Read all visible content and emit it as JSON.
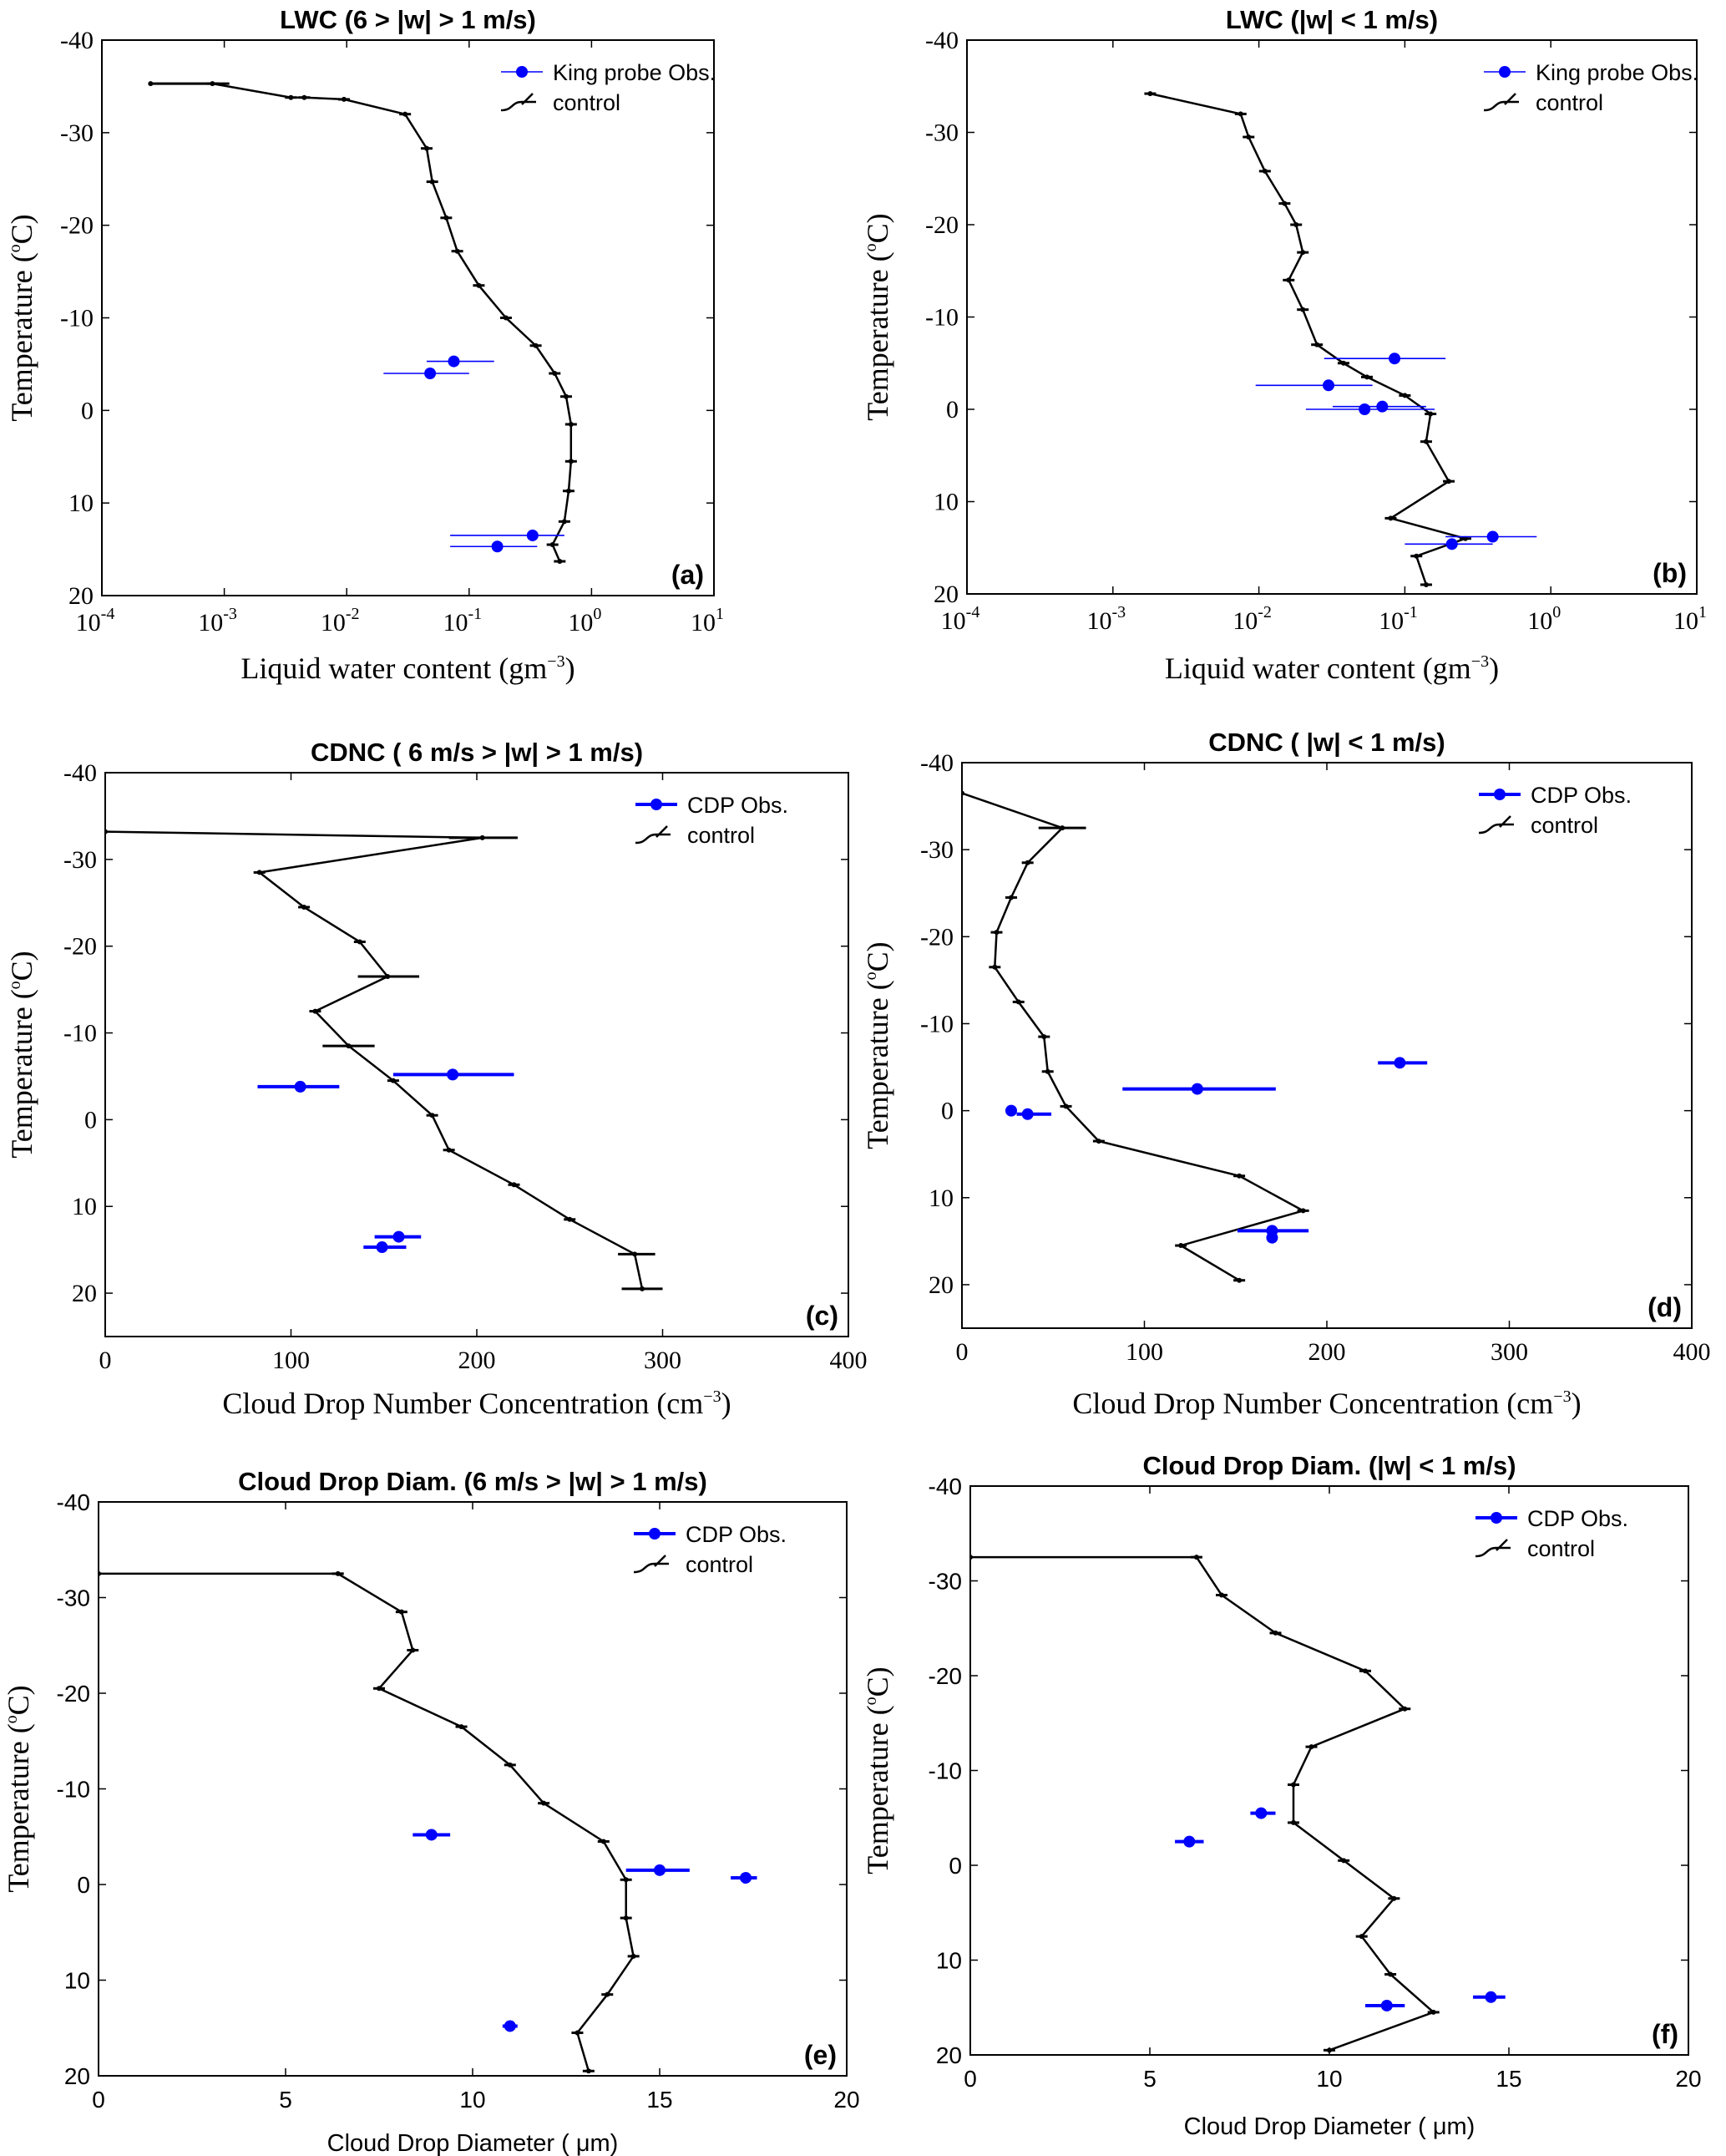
{
  "colors": {
    "obs": "#0000ff",
    "model": "#000000"
  },
  "chart_data": [
    {
      "id": "a",
      "type": "scatter",
      "title": "LWC  (6 > |w|  > 1 m/s)",
      "xlabel": "Liquid water content (gm",
      "xlabel_sup": "−3",
      "xlabel_tail": ")",
      "ylabel": "Temperature (",
      "ylabel_sup": "o",
      "ylabel_tail": "C)",
      "xscale": "log",
      "xlim": [
        0.0001,
        10
      ],
      "ylim": [
        20,
        -40
      ],
      "xticks": [
        {
          "v": 0.0001,
          "base": "10",
          "exp": "-4"
        },
        {
          "v": 0.001,
          "base": "10",
          "exp": "-3"
        },
        {
          "v": 0.01,
          "base": "10",
          "exp": "-2"
        },
        {
          "v": 0.1,
          "base": "10",
          "exp": "-1"
        },
        {
          "v": 1,
          "base": "10",
          "exp": "0"
        },
        {
          "v": 10,
          "base": "10",
          "exp": "1"
        }
      ],
      "yticks": [
        "-40",
        "-30",
        "-20",
        "-10",
        "0",
        "10",
        "20"
      ],
      "grid": false,
      "legend_position": "top-right",
      "panel_label": "(a)",
      "obs_name": "King probe Obs.",
      "model_name": "control",
      "observations": [
        {
          "x": 0.075,
          "y": -5.3,
          "xerr": [
            0.045,
            0.16
          ]
        },
        {
          "x": 0.048,
          "y": -4.0,
          "xerr": [
            0.02,
            0.1
          ]
        },
        {
          "x": 0.33,
          "y": 13.5,
          "xerr": [
            0.07,
            0.6
          ]
        },
        {
          "x": 0.17,
          "y": 14.7,
          "xerr": [
            0.07,
            0.36
          ]
        }
      ],
      "model": [
        {
          "x": 0.00025,
          "y": -35.3,
          "xerr": [
            0.00025,
            0.0011
          ]
        },
        {
          "x": 0.0008,
          "y": -35.3
        },
        {
          "x": 0.0035,
          "y": -33.8
        },
        {
          "x": 0.0045,
          "y": -33.8
        },
        {
          "x": 0.0095,
          "y": -33.6
        },
        {
          "x": 0.03,
          "y": -32.0
        },
        {
          "x": 0.045,
          "y": -28.3
        },
        {
          "x": 0.05,
          "y": -24.7
        },
        {
          "x": 0.065,
          "y": -20.8
        },
        {
          "x": 0.08,
          "y": -17.2
        },
        {
          "x": 0.12,
          "y": -13.5
        },
        {
          "x": 0.2,
          "y": -10.0
        },
        {
          "x": 0.35,
          "y": -7.0
        },
        {
          "x": 0.5,
          "y": -4.0
        },
        {
          "x": 0.62,
          "y": -1.5
        },
        {
          "x": 0.68,
          "y": 1.5
        },
        {
          "x": 0.68,
          "y": 5.5
        },
        {
          "x": 0.65,
          "y": 8.7
        },
        {
          "x": 0.6,
          "y": 12.0
        },
        {
          "x": 0.48,
          "y": 14.5
        },
        {
          "x": 0.55,
          "y": 16.3
        }
      ]
    },
    {
      "id": "b",
      "type": "scatter",
      "title": "LWC (|w|  < 1 m/s)",
      "xlabel": "Liquid water content (gm",
      "xlabel_sup": "−3",
      "xlabel_tail": ")",
      "ylabel": "Temperature (",
      "ylabel_sup": "o",
      "ylabel_tail": "C)",
      "xscale": "log",
      "xlim": [
        0.0001,
        10
      ],
      "ylim": [
        20,
        -40
      ],
      "xticks": [
        {
          "v": 0.0001,
          "base": "10",
          "exp": "-4"
        },
        {
          "v": 0.001,
          "base": "10",
          "exp": "-3"
        },
        {
          "v": 0.01,
          "base": "10",
          "exp": "-2"
        },
        {
          "v": 0.1,
          "base": "10",
          "exp": "-1"
        },
        {
          "v": 1,
          "base": "10",
          "exp": "0"
        },
        {
          "v": 10,
          "base": "10",
          "exp": "1"
        }
      ],
      "yticks": [
        "-40",
        "-30",
        "-20",
        "-10",
        "0",
        "10",
        "20"
      ],
      "grid": false,
      "legend_position": "top-right",
      "panel_label": "(b)",
      "obs_name": "King probe Obs.",
      "model_name": "control",
      "observations": [
        {
          "x": 0.085,
          "y": -5.5,
          "xerr": [
            0.028,
            0.19
          ]
        },
        {
          "x": 0.03,
          "y": -2.6,
          "xerr": [
            0.0095,
            0.06
          ]
        },
        {
          "x": 0.07,
          "y": -0.3,
          "xerr": [
            0.032,
            0.14
          ]
        },
        {
          "x": 0.053,
          "y": 0.0,
          "xerr": [
            0.021,
            0.16
          ]
        },
        {
          "x": 0.4,
          "y": 13.8,
          "xerr": [
            0.19,
            0.8
          ]
        },
        {
          "x": 0.21,
          "y": 14.6,
          "xerr": [
            0.1,
            0.4
          ]
        }
      ],
      "model": [
        {
          "x": 0.0018,
          "y": -34.2
        },
        {
          "x": 0.0075,
          "y": -32.0
        },
        {
          "x": 0.0085,
          "y": -29.5
        },
        {
          "x": 0.011,
          "y": -25.8
        },
        {
          "x": 0.015,
          "y": -22.3
        },
        {
          "x": 0.018,
          "y": -20.0
        },
        {
          "x": 0.02,
          "y": -17.0
        },
        {
          "x": 0.016,
          "y": -14.0
        },
        {
          "x": 0.02,
          "y": -10.8
        },
        {
          "x": 0.025,
          "y": -7.0
        },
        {
          "x": 0.038,
          "y": -5.0
        },
        {
          "x": 0.055,
          "y": -3.5
        },
        {
          "x": 0.1,
          "y": -1.5
        },
        {
          "x": 0.15,
          "y": 0.5
        },
        {
          "x": 0.14,
          "y": 3.5
        },
        {
          "x": 0.2,
          "y": 7.8
        },
        {
          "x": 0.08,
          "y": 11.8
        },
        {
          "x": 0.26,
          "y": 14.0
        },
        {
          "x": 0.12,
          "y": 15.9
        },
        {
          "x": 0.14,
          "y": 19.0
        }
      ]
    },
    {
      "id": "c",
      "type": "scatter",
      "title": "CDNC ( 6 m/s > |w|  > 1 m/s)",
      "xlabel": "Cloud Drop Number Concentration (cm",
      "xlabel_sup": "−3",
      "xlabel_tail": ")",
      "ylabel": "Temperature (",
      "ylabel_sup": "o",
      "ylabel_tail": "C)",
      "xscale": "linear",
      "xlim": [
        0,
        400
      ],
      "ylim": [
        25,
        -40
      ],
      "xticks": [
        "0",
        "100",
        "200",
        "300",
        "400"
      ],
      "yticks": [
        "-40",
        "-30",
        "-20",
        "-10",
        "0",
        "10",
        "20"
      ],
      "grid": false,
      "legend_position": "top-right",
      "panel_label": "(c)",
      "obs_name": "CDP Obs.",
      "model_name": "control",
      "observations": [
        {
          "x": 187,
          "y": -5.2,
          "xerr": [
            155,
            220
          ]
        },
        {
          "x": 105,
          "y": -3.8,
          "xerr": [
            82,
            126
          ]
        },
        {
          "x": 158,
          "y": 13.5,
          "xerr": [
            145,
            170
          ]
        },
        {
          "x": 149,
          "y": 14.7,
          "xerr": [
            139,
            162
          ]
        }
      ],
      "model": [
        {
          "x": 0,
          "y": -33.2
        },
        {
          "x": 203,
          "y": -32.5,
          "xerr": [
            185,
            222
          ]
        },
        {
          "x": 83,
          "y": -28.5
        },
        {
          "x": 107,
          "y": -24.5
        },
        {
          "x": 137,
          "y": -20.5
        },
        {
          "x": 152,
          "y": -16.5,
          "xerr": [
            136,
            169
          ]
        },
        {
          "x": 113,
          "y": -12.5
        },
        {
          "x": 131,
          "y": -8.5,
          "xerr": [
            117,
            145
          ]
        },
        {
          "x": 155,
          "y": -4.5
        },
        {
          "x": 176,
          "y": -0.5
        },
        {
          "x": 185,
          "y": 3.5
        },
        {
          "x": 220,
          "y": 7.5
        },
        {
          "x": 250,
          "y": 11.5
        },
        {
          "x": 285,
          "y": 15.5,
          "xerr": [
            276,
            296
          ]
        },
        {
          "x": 289,
          "y": 19.5,
          "xerr": [
            278,
            300
          ]
        }
      ]
    },
    {
      "id": "d",
      "type": "scatter",
      "title": "CDNC ( |w|  < 1 m/s)",
      "xlabel": "Cloud Drop Number Concentration (cm",
      "xlabel_sup": "−3",
      "xlabel_tail": ")",
      "ylabel": "Temperature (",
      "ylabel_sup": "o",
      "ylabel_tail": "C)",
      "xscale": "linear",
      "xlim": [
        0,
        400
      ],
      "ylim": [
        25,
        -40
      ],
      "xticks": [
        "0",
        "100",
        "200",
        "300",
        "400"
      ],
      "yticks": [
        "-40",
        "-30",
        "-20",
        "-10",
        "0",
        "10",
        "20"
      ],
      "grid": false,
      "legend_position": "top-right",
      "panel_label": "(d)",
      "obs_name": "CDP Obs.",
      "model_name": "control",
      "observations": [
        {
          "x": 240,
          "y": -5.5,
          "xerr": [
            228,
            255
          ]
        },
        {
          "x": 129,
          "y": -2.5,
          "xerr": [
            88,
            172
          ]
        },
        {
          "x": 27,
          "y": 0.0
        },
        {
          "x": 36,
          "y": 0.4,
          "xerr": [
            30,
            49
          ]
        },
        {
          "x": 170,
          "y": 13.8,
          "xerr": [
            151,
            190
          ]
        },
        {
          "x": 170,
          "y": 14.6
        }
      ],
      "model": [
        {
          "x": 0,
          "y": -36.5
        },
        {
          "x": 55,
          "y": -32.5,
          "xerr": [
            42,
            68
          ]
        },
        {
          "x": 36,
          "y": -28.5
        },
        {
          "x": 27,
          "y": -24.5
        },
        {
          "x": 19,
          "y": -20.5
        },
        {
          "x": 18,
          "y": -16.5
        },
        {
          "x": 31,
          "y": -12.5
        },
        {
          "x": 45,
          "y": -8.5
        },
        {
          "x": 47,
          "y": -4.5
        },
        {
          "x": 57,
          "y": -0.5
        },
        {
          "x": 75,
          "y": 3.5
        },
        {
          "x": 152,
          "y": 7.5
        },
        {
          "x": 187,
          "y": 11.5
        },
        {
          "x": 120,
          "y": 15.5
        },
        {
          "x": 152,
          "y": 19.5
        }
      ]
    },
    {
      "id": "e",
      "type": "scatter",
      "title": "Cloud Drop Diam. (6 m/s > |w|  > 1 m/s)",
      "xlabel": "Cloud Drop Diameter ( μm)",
      "ylabel": "Temperature (",
      "ylabel_sup": "o",
      "ylabel_tail": "C)",
      "xscale": "linear",
      "xlim": [
        0,
        20
      ],
      "ylim": [
        20,
        -40
      ],
      "xticks": [
        "0",
        "5",
        "10",
        "15",
        "20"
      ],
      "yticks": [
        "-40",
        "-30",
        "-20",
        "-10",
        "0",
        "10",
        "20"
      ],
      "grid": false,
      "legend_position": "top-right",
      "panel_label": "(e)",
      "obs_name": "CDP Obs.",
      "model_name": "control",
      "observations": [
        {
          "x": 8.9,
          "y": -5.2,
          "xerr": [
            8.4,
            9.4
          ]
        },
        {
          "x": 15.0,
          "y": -1.5,
          "xerr": [
            14.1,
            15.8
          ]
        },
        {
          "x": 17.3,
          "y": -0.7,
          "xerr": [
            16.9,
            17.6
          ]
        },
        {
          "x": 11.0,
          "y": 14.8,
          "xerr": [
            10.8,
            11.2
          ]
        }
      ],
      "model": [
        {
          "x": 0,
          "y": -32.5
        },
        {
          "x": 6.4,
          "y": -32.5
        },
        {
          "x": 8.1,
          "y": -28.5
        },
        {
          "x": 8.4,
          "y": -24.5
        },
        {
          "x": 7.5,
          "y": -20.5
        },
        {
          "x": 9.7,
          "y": -16.5
        },
        {
          "x": 11.0,
          "y": -12.5
        },
        {
          "x": 11.9,
          "y": -8.5
        },
        {
          "x": 13.5,
          "y": -4.5
        },
        {
          "x": 14.1,
          "y": -0.5
        },
        {
          "x": 14.1,
          "y": 3.5
        },
        {
          "x": 14.3,
          "y": 7.5
        },
        {
          "x": 13.6,
          "y": 11.5
        },
        {
          "x": 12.8,
          "y": 15.5
        },
        {
          "x": 13.1,
          "y": 19.5
        }
      ]
    },
    {
      "id": "f",
      "type": "scatter",
      "title": "Cloud Drop Diam. (|w|  < 1 m/s)",
      "xlabel": "Cloud Drop Diameter ( μm)",
      "ylabel": "Temperature (",
      "ylabel_sup": "o",
      "ylabel_tail": "C)",
      "xscale": "linear",
      "xlim": [
        0,
        20
      ],
      "ylim": [
        20,
        -40
      ],
      "xticks": [
        "0",
        "5",
        "10",
        "15",
        "20"
      ],
      "yticks": [
        "-40",
        "-30",
        "-20",
        "-10",
        "0",
        "10",
        "20"
      ],
      "grid": false,
      "legend_position": "top-right",
      "panel_label": "(f)",
      "obs_name": "CDP Obs.",
      "model_name": "control",
      "observations": [
        {
          "x": 8.1,
          "y": -5.5,
          "xerr": [
            7.8,
            8.5
          ]
        },
        {
          "x": 6.1,
          "y": -2.5,
          "xerr": [
            5.7,
            6.5
          ]
        },
        {
          "x": 14.5,
          "y": 13.9,
          "xerr": [
            14.0,
            14.9
          ]
        },
        {
          "x": 11.6,
          "y": 14.8,
          "xerr": [
            11.0,
            12.1
          ]
        }
      ],
      "model": [
        {
          "x": 0,
          "y": -32.5
        },
        {
          "x": 6.3,
          "y": -32.5
        },
        {
          "x": 7.0,
          "y": -28.5
        },
        {
          "x": 8.5,
          "y": -24.5
        },
        {
          "x": 11.0,
          "y": -20.5
        },
        {
          "x": 12.1,
          "y": -16.5
        },
        {
          "x": 9.5,
          "y": -12.5
        },
        {
          "x": 9.0,
          "y": -8.5
        },
        {
          "x": 9.0,
          "y": -4.5
        },
        {
          "x": 10.4,
          "y": -0.5
        },
        {
          "x": 11.8,
          "y": 3.5
        },
        {
          "x": 10.9,
          "y": 7.5
        },
        {
          "x": 11.7,
          "y": 11.5
        },
        {
          "x": 12.9,
          "y": 15.5
        },
        {
          "x": 10.0,
          "y": 19.5
        }
      ]
    }
  ]
}
